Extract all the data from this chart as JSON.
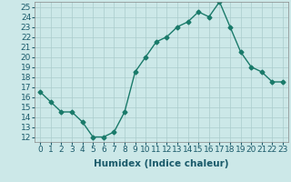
{
  "x": [
    0,
    1,
    2,
    3,
    4,
    5,
    6,
    7,
    8,
    9,
    10,
    11,
    12,
    13,
    14,
    15,
    16,
    17,
    18,
    19,
    20,
    21,
    22,
    23
  ],
  "y": [
    16.5,
    15.5,
    14.5,
    14.5,
    13.5,
    12.0,
    12.0,
    12.5,
    14.5,
    18.5,
    20.0,
    21.5,
    22.0,
    23.0,
    23.5,
    24.5,
    24.0,
    25.5,
    23.0,
    20.5,
    19.0,
    18.5,
    17.5,
    17.5
  ],
  "line_color": "#1a7a6a",
  "marker": "D",
  "marker_size": 2.5,
  "bg_color": "#cce8e8",
  "grid_color": "#aacccc",
  "xlabel": "Humidex (Indice chaleur)",
  "xlim": [
    -0.5,
    23.5
  ],
  "ylim": [
    11.5,
    25.5
  ],
  "yticks": [
    12,
    13,
    14,
    15,
    16,
    17,
    18,
    19,
    20,
    21,
    22,
    23,
    24,
    25
  ],
  "xtick_labels": [
    "0",
    "1",
    "2",
    "3",
    "4",
    "5",
    "6",
    "7",
    "8",
    "9",
    "10",
    "11",
    "12",
    "13",
    "14",
    "15",
    "16",
    "17",
    "18",
    "19",
    "20",
    "21",
    "22",
    "23"
  ],
  "tick_fontsize": 6.5,
  "label_fontsize": 7.5
}
